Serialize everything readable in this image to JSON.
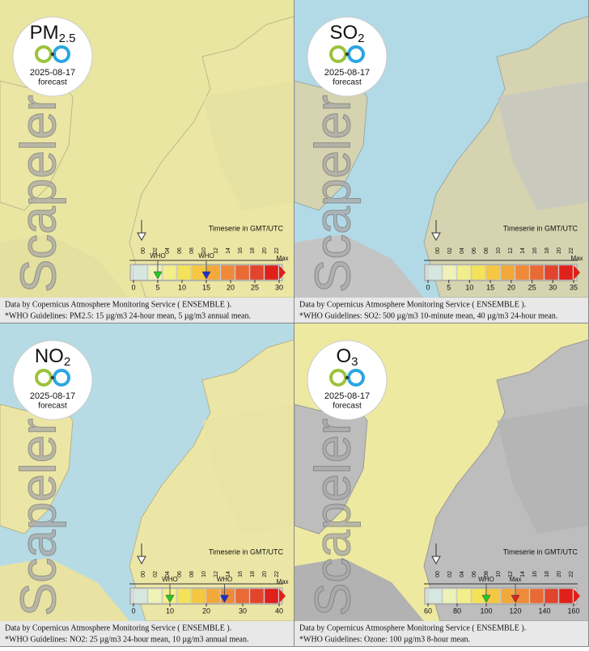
{
  "hours": [
    "00",
    "02",
    "04",
    "06",
    "08",
    "10",
    "12",
    "14",
    "16",
    "18",
    "20",
    "22"
  ],
  "panels": [
    {
      "pollutant": "PM",
      "pollutant_sub": "2.5",
      "date": "2025-08-17",
      "status": "forecast",
      "watermark": "Scapeler",
      "timeserie_label": "Timeserie in GMT/UTC",
      "scale_ticks": [
        0,
        5,
        10,
        15,
        20,
        25,
        30
      ],
      "markers": [
        {
          "label": "WHO",
          "value": 5,
          "color": "#22cc22"
        },
        {
          "label": "WHO",
          "value": 15,
          "color": "#1a2fd0"
        }
      ],
      "max_label": "Max",
      "source": "Data by Copernicus Atmosphere Monitoring Service ( ENSEMBLE ).",
      "guideline": "*WHO Guidelines: PM2.5: 15 µg/m3 24-hour mean, 5 µg/m3 annual mean."
    },
    {
      "pollutant": "SO",
      "pollutant_sub": "2",
      "date": "2025-08-17",
      "status": "forecast",
      "watermark": "Scapeler",
      "timeserie_label": "Timeserie in GMT/UTC",
      "scale_ticks": [
        0,
        5,
        10,
        15,
        20,
        25,
        30,
        35
      ],
      "markers": [],
      "max_label": "Max",
      "source": "Data by Copernicus Atmosphere Monitoring Service ( ENSEMBLE ).",
      "guideline": "*WHO Guidelines: SO2: 500 µg/m3 10-minute mean, 40 µg/m3 24-hour mean."
    },
    {
      "pollutant": "NO",
      "pollutant_sub": "2",
      "date": "2025-08-17",
      "status": "forecast",
      "watermark": "Scapeler",
      "timeserie_label": "Timeserie in GMT/UTC",
      "scale_ticks": [
        0,
        10,
        20,
        30,
        40
      ],
      "markers": [
        {
          "label": "WHO",
          "value": 10,
          "color": "#22cc22"
        },
        {
          "label": "WHO",
          "value": 25,
          "color": "#1a2fd0"
        }
      ],
      "max_label": "Max",
      "source": "Data by Copernicus Atmosphere Monitoring Service ( ENSEMBLE ).",
      "guideline": "*WHO Guidelines: NO2: 25 µg/m3 24-hour mean, 10 µg/m3 annual mean."
    },
    {
      "pollutant": "O",
      "pollutant_sub": "3",
      "date": "2025-08-17",
      "status": "forecast",
      "watermark": "Scapeler",
      "timeserie_label": "Timeserie in GMT/UTC",
      "scale_ticks": [
        60,
        80,
        100,
        120,
        140,
        160
      ],
      "markers": [
        {
          "label": "WHO",
          "value": 100,
          "color": "#22cc22"
        },
        {
          "label": "Max",
          "value": 120,
          "color": "#dd2222"
        }
      ],
      "source": "Data by Copernicus Atmosphere Monitoring Service ( ENSEMBLE ).",
      "guideline": "*WHO Guidelines: Ozone: 100 µg/m3 8-hour mean."
    }
  ]
}
